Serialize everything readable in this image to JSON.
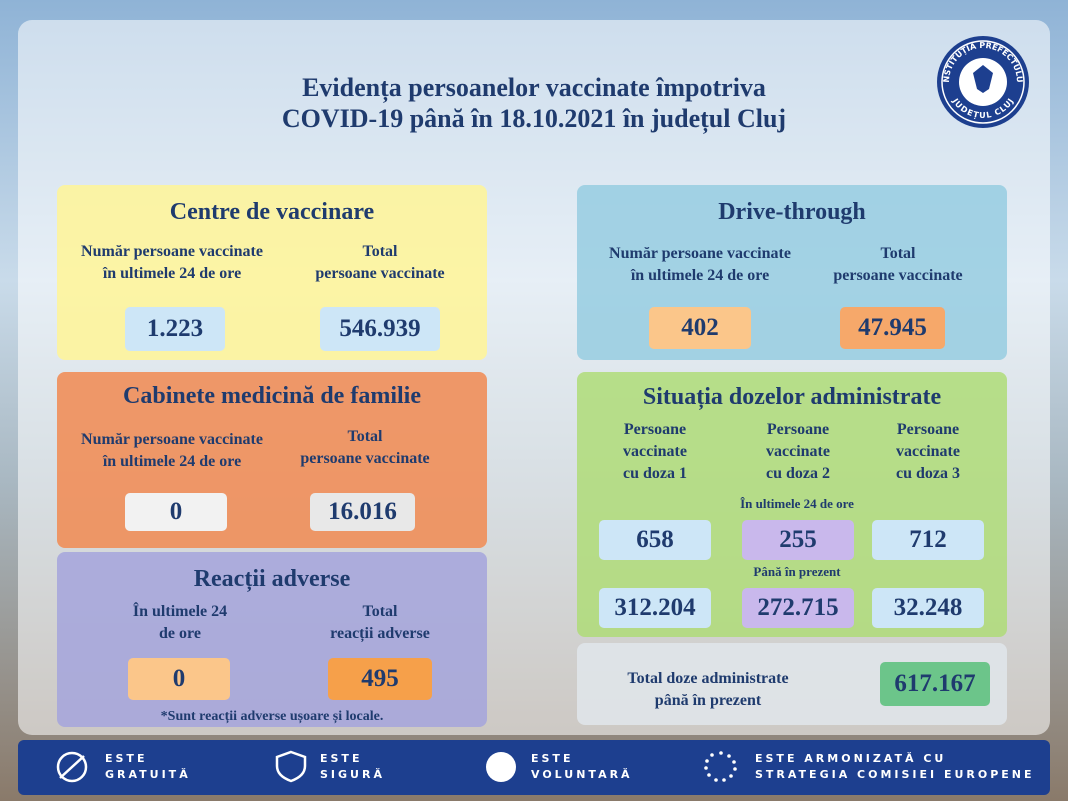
{
  "header": {
    "title_lines": [
      "Evidența persoanelor vaccinate împotriva",
      "COVID-19 până în 18.10.2021 în județul Cluj"
    ],
    "logo_top": "INSTITUȚIA PREFECTULUI",
    "logo_bottom": "JUDEȚUL CLUJ"
  },
  "centre": {
    "title": "Centre de vaccinare",
    "label_24h": [
      "Număr persoane vaccinate",
      "în ultimele 24 de ore"
    ],
    "label_total": [
      "Total",
      "persoane vaccinate"
    ],
    "value_24h": "1.223",
    "value_total": "546.939"
  },
  "drive": {
    "title": "Drive-through",
    "label_24h": [
      "Număr persoane vaccinate",
      "în ultimele 24 de ore"
    ],
    "label_total": [
      "Total",
      "persoane vaccinate"
    ],
    "value_24h": "402",
    "value_total": "47.945"
  },
  "cabinete": {
    "title": "Cabinete medicină de familie",
    "label_24h": [
      "Număr persoane vaccinate",
      "în ultimele 24 de ore"
    ],
    "label_total": [
      "Total",
      "persoane vaccinate"
    ],
    "value_24h": "0",
    "value_total": "16.016"
  },
  "reactii": {
    "title": "Reacții adverse",
    "label_24h": [
      "În ultimele 24",
      "de ore"
    ],
    "label_total": [
      "Total",
      "reacții adverse"
    ],
    "value_24h": "0",
    "value_total": "495",
    "note": "*Sunt reacții adverse ușoare și locale."
  },
  "doze": {
    "title": "Situația dozelor administrate",
    "columns": [
      [
        "Persoane",
        "vaccinate",
        "cu doza 1"
      ],
      [
        "Persoane",
        "vaccinate",
        "cu doza 2"
      ],
      [
        "Persoane",
        "vaccinate",
        "cu doza 3"
      ]
    ],
    "label_24h": "În ultimele 24 de ore",
    "values_24h": [
      "658",
      "255",
      "712"
    ],
    "label_total": "Până în prezent",
    "values_total": [
      "312.204",
      "272.715",
      "32.248"
    ]
  },
  "total": {
    "label": [
      "Total doze administrate",
      "până în prezent"
    ],
    "value": "617.167"
  },
  "footer": [
    [
      "ESTE",
      "GRATUITĂ"
    ],
    [
      "ESTE",
      "SIGURĂ"
    ],
    [
      "ESTE",
      "VOLUNTARĂ"
    ],
    [
      "ESTE ARMONIZATĂ CU",
      "STRATEGIA COMISIEI EUROPENE"
    ]
  ]
}
